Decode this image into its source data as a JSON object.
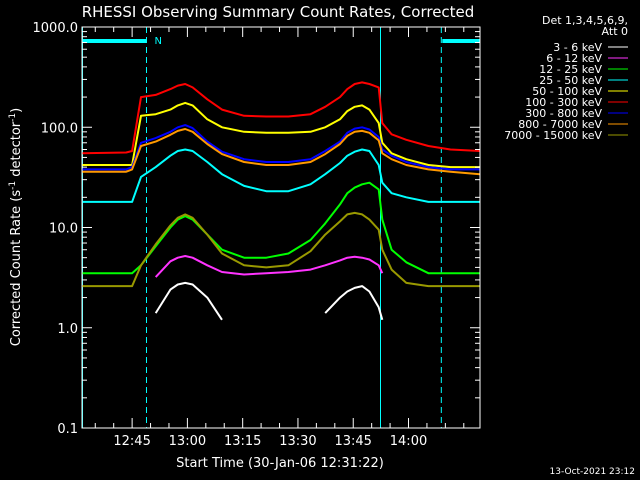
{
  "title": "RHESSI Observing Summary Count Rates, Corrected",
  "footer_timestamp": "13-Oct-2021 23:12",
  "chart_data": {
    "type": "line",
    "title": "RHESSI Observing Summary Count Rates, Corrected",
    "xlabel": "Start Time (30-Jan-06 12:31:22)",
    "ylabel_main": "Corrected Count Rate (s",
    "ylabel_sup1": "-1",
    "ylabel_mid": " detector",
    "ylabel_sup2": "-1",
    "ylabel_end": ")",
    "y_scale": "log",
    "ylim": [
      0.1,
      1000
    ],
    "xlim_minutes": [
      0,
      108
    ],
    "x_ticks": [
      {
        "label": "12:45",
        "minutes": 13.6
      },
      {
        "label": "13:00",
        "minutes": 28.6
      },
      {
        "label": "13:15",
        "minutes": 43.6
      },
      {
        "label": "13:30",
        "minutes": 58.6
      },
      {
        "label": "13:45",
        "minutes": 73.6
      },
      {
        "label": "14:00",
        "minutes": 88.6
      }
    ],
    "y_ticks": [
      {
        "label": "1000.0",
        "value": 1000
      },
      {
        "label": "100.0",
        "value": 100
      },
      {
        "label": "10.0",
        "value": 10
      },
      {
        "label": "1.0",
        "value": 1
      },
      {
        "label": "0.1",
        "value": 0.1
      }
    ],
    "legend": {
      "header": [
        "Det 1,3,4,5,6,9,",
        "Att 0"
      ],
      "placement": "right"
    },
    "annotation_N": "N",
    "night_bars": [
      [
        0,
        17.5
      ],
      [
        97.5,
        108
      ]
    ],
    "vlines_solid": [
      0,
      81
    ],
    "vlines_dashed": [
      17.5,
      97.5
    ],
    "time_x": [
      0,
      12,
      13.6,
      16,
      20,
      24,
      26,
      28,
      30,
      34,
      38,
      44,
      50,
      56,
      62,
      66,
      70,
      72,
      74,
      76,
      78,
      80.5,
      81.5,
      84,
      88,
      94,
      100,
      108
    ],
    "series": [
      {
        "name": "3 - 6 keV",
        "color": "#ffffff",
        "values": [
          null,
          null,
          null,
          null,
          1.4,
          2.4,
          2.7,
          2.8,
          2.7,
          2.0,
          1.2,
          null,
          null,
          null,
          null,
          1.4,
          2.0,
          2.3,
          2.5,
          2.6,
          2.3,
          1.6,
          1.2,
          null,
          null,
          null,
          null,
          null
        ]
      },
      {
        "name": "6 - 12 keV",
        "color": "#ff33ff",
        "values": [
          null,
          null,
          null,
          null,
          3.2,
          4.6,
          5.0,
          5.2,
          5.0,
          4.2,
          3.6,
          3.4,
          3.5,
          3.6,
          3.8,
          4.2,
          4.7,
          5.0,
          5.1,
          5.0,
          4.8,
          4.2,
          3.5,
          null,
          null,
          null,
          null,
          null
        ]
      },
      {
        "name": "12 - 25 keV",
        "color": "#00ff00",
        "values": [
          3.5,
          3.5,
          3.5,
          4.2,
          6.5,
          10,
          12,
          13,
          12,
          8.5,
          6.0,
          5.0,
          5.0,
          5.5,
          7.5,
          11,
          17,
          22,
          25,
          27,
          28,
          24,
          12,
          6,
          4.5,
          3.5,
          3.5,
          3.5
        ]
      },
      {
        "name": "25 - 50 keV",
        "color": "#00ffff",
        "values": [
          18,
          18,
          18,
          32,
          40,
          52,
          58,
          60,
          58,
          45,
          34,
          26,
          23,
          23,
          27,
          34,
          44,
          52,
          57,
          60,
          58,
          42,
          28,
          22,
          20,
          18,
          18,
          18
        ]
      },
      {
        "name": "50 - 100 keV",
        "color": "#ffff00",
        "values": [
          42,
          42,
          42,
          130,
          135,
          150,
          165,
          175,
          165,
          120,
          100,
          90,
          88,
          88,
          90,
          100,
          120,
          145,
          160,
          165,
          150,
          110,
          70,
          55,
          48,
          42,
          40,
          40
        ]
      },
      {
        "name": "100 - 300 keV",
        "color": "#ff0000",
        "values": [
          55,
          56,
          58,
          200,
          210,
          240,
          260,
          270,
          250,
          190,
          150,
          130,
          128,
          128,
          135,
          160,
          200,
          240,
          270,
          280,
          270,
          250,
          110,
          85,
          75,
          65,
          60,
          58
        ]
      },
      {
        "name": "300 - 800 keV",
        "color": "#0000ff",
        "values": [
          38,
          38,
          40,
          70,
          78,
          90,
          100,
          105,
          98,
          72,
          57,
          48,
          45,
          45,
          48,
          58,
          72,
          88,
          97,
          100,
          95,
          80,
          60,
          52,
          45,
          40,
          38,
          38
        ]
      },
      {
        "name": "800 - 7000 keV",
        "color": "#ff9900",
        "values": [
          36,
          36,
          38,
          65,
          72,
          84,
          92,
          96,
          90,
          68,
          54,
          45,
          42,
          42,
          45,
          54,
          68,
          82,
          90,
          92,
          88,
          74,
          55,
          48,
          42,
          38,
          36,
          34
        ]
      },
      {
        "name": "7000 - 15000 keV",
        "color": "#999900",
        "values": [
          2.6,
          2.6,
          2.6,
          4.2,
          6.8,
          10.5,
          12.5,
          13.5,
          12.5,
          8.5,
          5.5,
          4.2,
          4.0,
          4.2,
          5.8,
          8.5,
          11.5,
          13.5,
          14.0,
          13.5,
          12.0,
          9.5,
          6.0,
          3.8,
          2.8,
          2.6,
          2.6,
          2.6
        ]
      }
    ]
  }
}
